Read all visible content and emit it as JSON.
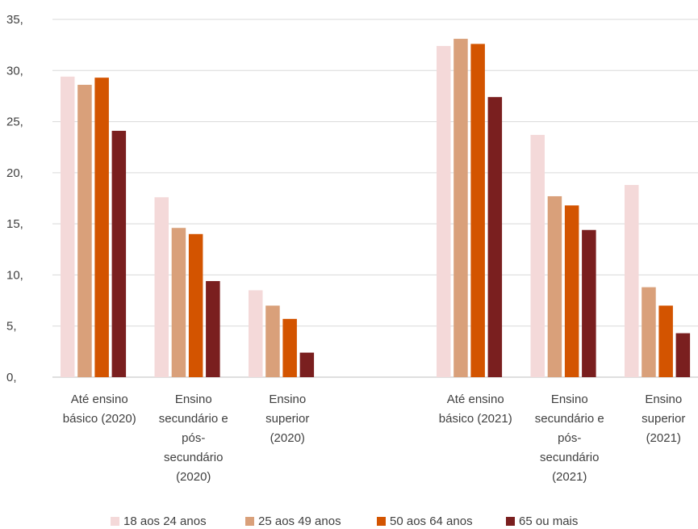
{
  "chart_data": {
    "type": "bar",
    "title": "",
    "xlabel": "",
    "ylabel": "",
    "ylim": [
      0,
      35
    ],
    "yticks": [
      0,
      5,
      10,
      15,
      20,
      25,
      30,
      35
    ],
    "ytick_labels": [
      "0,",
      "5,",
      "10,",
      "15,",
      "20,",
      "25,",
      "30,",
      "35,"
    ],
    "grid": true,
    "legend_position": "bottom",
    "categories": [
      [
        "Até ensino",
        "básico (2020)"
      ],
      [
        "Ensino",
        "secundário e",
        "pós-",
        "secundário",
        "(2020)"
      ],
      [
        "Ensino",
        "superior",
        "(2020)"
      ],
      [],
      [
        "Até ensino",
        "básico (2021)"
      ],
      [
        "Ensino",
        "secundário e",
        "pós-",
        "secundário",
        "(2021)"
      ],
      [
        "Ensino",
        "superior",
        "(2021)"
      ]
    ],
    "series": [
      {
        "name": "18 aos 24 anos",
        "color": "#f4d9d9",
        "values": [
          29.4,
          17.6,
          8.5,
          null,
          32.4,
          23.7,
          18.8
        ]
      },
      {
        "name": "25 aos 49 anos",
        "color": "#d9a07a",
        "values": [
          28.6,
          14.6,
          7.0,
          null,
          33.1,
          17.7,
          8.8
        ]
      },
      {
        "name": "50 aos 64 anos",
        "color": "#d35400",
        "values": [
          29.3,
          14.0,
          5.7,
          null,
          32.6,
          16.8,
          7.0
        ]
      },
      {
        "name": "65 ou mais",
        "color": "#7a1f1f",
        "values": [
          24.1,
          9.4,
          2.4,
          null,
          27.4,
          14.4,
          4.3
        ]
      }
    ]
  }
}
